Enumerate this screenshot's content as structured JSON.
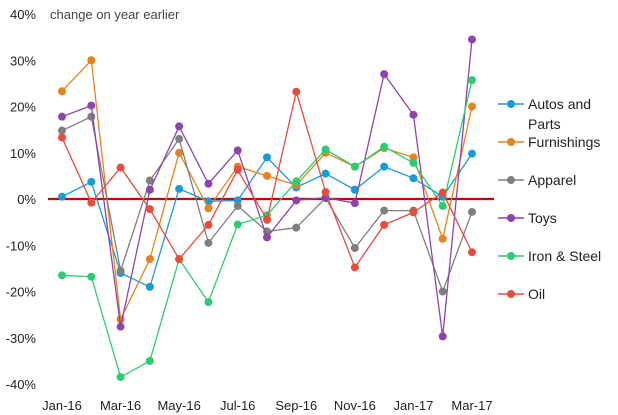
{
  "chart_data": {
    "type": "line",
    "subtitle": "change on year earlier",
    "x": [
      "Jan-16",
      "Feb-16",
      "Mar-16",
      "Apr-16",
      "May-16",
      "Jun-16",
      "Jul-16",
      "Aug-16",
      "Sep-16",
      "Oct-16",
      "Nov-16",
      "Dec-16",
      "Jan-17",
      "Feb-17",
      "Mar-17"
    ],
    "x_tick_labels": [
      "Jan-16",
      "Mar-16",
      "May-16",
      "Jul-16",
      "Sep-16",
      "Nov-16",
      "Jan-17",
      "Mar-17"
    ],
    "y_tick_labels": [
      "40%",
      "30%",
      "20%",
      "10%",
      "0%",
      "-10%",
      "-20%",
      "-30%",
      "-40%"
    ],
    "ylim": [
      -40,
      40
    ],
    "y_unit": "%",
    "zero_line_color": "#cc0000",
    "grid": false,
    "legend_position": "right",
    "series": [
      {
        "name": "Autos and Parts",
        "color": "#1a9bd7",
        "values": [
          0.5,
          3.7,
          -16,
          -19,
          2.2,
          -0.5,
          -0.3,
          9,
          2.5,
          5.5,
          2,
          7,
          4.5,
          0.5,
          9.8
        ]
      },
      {
        "name": "Furnishings",
        "color": "#e8821e",
        "values": [
          23.3,
          30,
          -26,
          -13,
          10,
          -2,
          7,
          5,
          3,
          10,
          7,
          11,
          9,
          -8.6,
          20
        ]
      },
      {
        "name": "Apparel",
        "color": "#7f7f7f",
        "values": [
          14.8,
          17.8,
          -15.5,
          4,
          13,
          -9.5,
          -1.5,
          -7,
          -6.2,
          0.2,
          -10.6,
          -2.5,
          -2.5,
          -20,
          -2.8
        ]
      },
      {
        "name": "Toys",
        "color": "#8e44ad",
        "values": [
          17.8,
          20.2,
          -27.6,
          2,
          15.7,
          3.3,
          10.5,
          -8.3,
          -0.3,
          0.3,
          -0.9,
          27,
          18.2,
          -29.7,
          34.5
        ]
      },
      {
        "name": "Iron & Steel",
        "color": "#2ecc71",
        "values": [
          -16.5,
          -16.8,
          -38.5,
          -35,
          -13,
          -22.3,
          -5.5,
          -3.5,
          3.8,
          10.7,
          7,
          11.3,
          7.8,
          -1.5,
          25.7
        ]
      },
      {
        "name": "Oil",
        "color": "#e74c3c",
        "values": [
          13.3,
          -0.8,
          6.8,
          -2.2,
          -13,
          -5.6,
          6.3,
          -4.5,
          23.2,
          1.5,
          -14.8,
          -5.6,
          -2.9,
          1.4,
          -11.5
        ]
      }
    ]
  }
}
